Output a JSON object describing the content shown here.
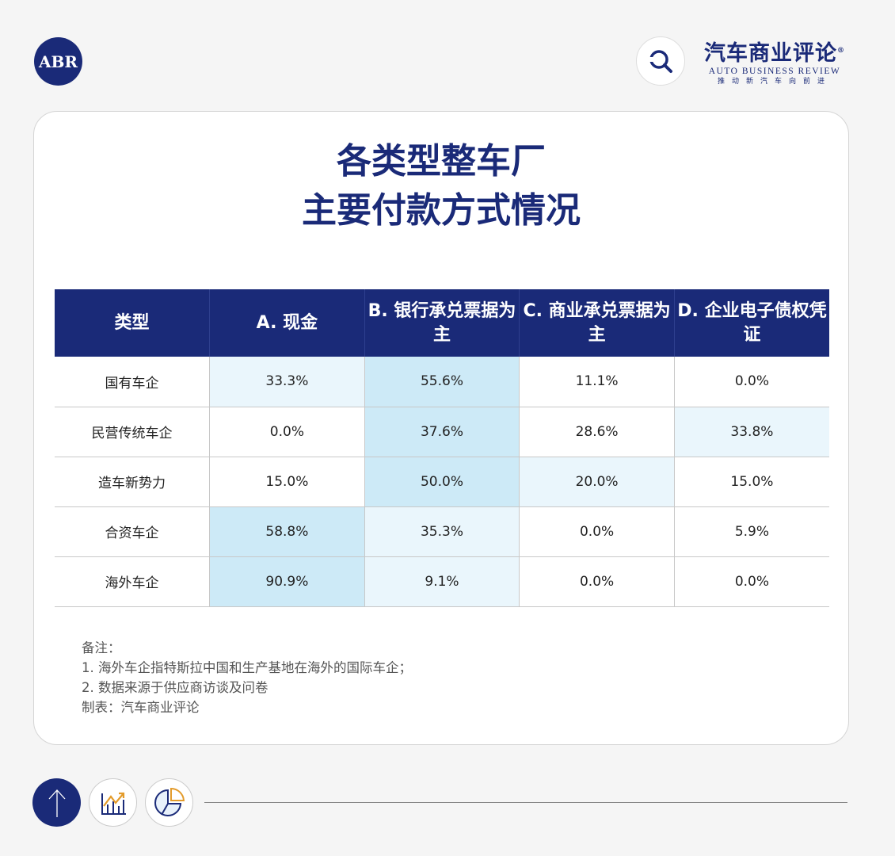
{
  "header": {
    "abr_logo": "ABR",
    "brand_cn": "汽车商业评论",
    "brand_mark": "®",
    "brand_en": "AUTO BUSINESS REVIEW",
    "slogan": "推动新汽车向前进"
  },
  "title": {
    "line1": "各类型整车厂",
    "line2": "主要付款方式情况"
  },
  "table": {
    "headers": [
      "类型",
      "A. 现金",
      "B. 银行承兑票据为主",
      "C. 商业承兑票据为主",
      "D. 企业电子债权凭证"
    ],
    "rows": [
      {
        "type": "国有车企",
        "values": [
          "33.3%",
          "55.6%",
          "11.1%",
          "0.0%"
        ],
        "shade": [
          "light",
          "strong",
          "none",
          "none"
        ]
      },
      {
        "type": "民营传统车企",
        "values": [
          "0.0%",
          "37.6%",
          "28.6%",
          "33.8%"
        ],
        "shade": [
          "none",
          "strong",
          "none",
          "light"
        ]
      },
      {
        "type": "造车新势力",
        "values": [
          "15.0%",
          "50.0%",
          "20.0%",
          "15.0%"
        ],
        "shade": [
          "none",
          "strong",
          "light",
          "none"
        ]
      },
      {
        "type": "合资车企",
        "values": [
          "58.8%",
          "35.3%",
          "0.0%",
          "5.9%"
        ],
        "shade": [
          "strong",
          "light",
          "none",
          "none"
        ]
      },
      {
        "type": "海外车企",
        "values": [
          "90.9%",
          "9.1%",
          "0.0%",
          "0.0%"
        ],
        "shade": [
          "strong",
          "light",
          "none",
          "none"
        ]
      }
    ]
  },
  "notes": {
    "heading": "备注：",
    "n1": "1. 海外车企指特斯拉中国和生产基地在海外的国际车企；",
    "n2": "2. 数据来源于供应商访谈及问卷",
    "credit": "制表：汽车商业评论"
  },
  "colors": {
    "navy": "#1a2a78",
    "strong_cell": "#cdeaf7",
    "light_cell": "#eaf6fc",
    "accent_orange": "#e39b2b"
  }
}
